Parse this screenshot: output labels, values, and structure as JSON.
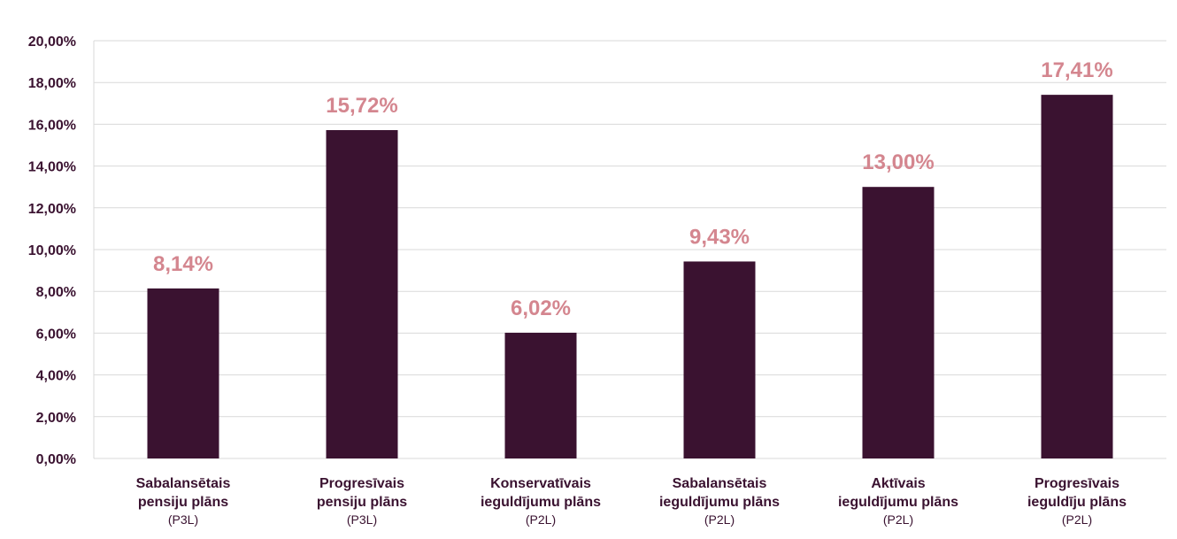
{
  "chart_data": {
    "type": "bar",
    "categories": [
      {
        "line1": "Sabalansētais",
        "line2": "pensiju plāns",
        "line3": "(P3L)"
      },
      {
        "line1": "Progresīvais",
        "line2": "pensiju plāns",
        "line3": "(P3L)"
      },
      {
        "line1": "Konservatīvais",
        "line2": "ieguldījumu plāns",
        "line3": "(P2L)"
      },
      {
        "line1": "Sabalansētais",
        "line2": "ieguldījumu plāns",
        "line3": "(P2L)"
      },
      {
        "line1": "Aktīvais",
        "line2": "ieguldījumu plāns",
        "line3": "(P2L)"
      },
      {
        "line1": "Progresīvais",
        "line2": "ieguldīju plāns",
        "line3": "(P2L)"
      }
    ],
    "values": [
      8.14,
      15.72,
      6.02,
      9.43,
      13.0,
      17.41
    ],
    "data_labels": [
      "8,14%",
      "15,72%",
      "6,02%",
      "9,43%",
      "13,00%",
      "17,41%"
    ],
    "ylim": [
      0,
      20
    ],
    "yticks": [
      {
        "value": 0,
        "label": "0,00%"
      },
      {
        "value": 2,
        "label": "2,00%"
      },
      {
        "value": 4,
        "label": "4,00%"
      },
      {
        "value": 6,
        "label": "6,00%"
      },
      {
        "value": 8,
        "label": "8,00%"
      },
      {
        "value": 10,
        "label": "10,00%"
      },
      {
        "value": 12,
        "label": "12,00%"
      },
      {
        "value": 14,
        "label": "14,00%"
      },
      {
        "value": 16,
        "label": "16,00%"
      },
      {
        "value": 18,
        "label": "18,00%"
      },
      {
        "value": 20,
        "label": "20,00%"
      }
    ],
    "grid": true,
    "legend": "none"
  },
  "colors": {
    "bar": "#3a1230",
    "data_label": "#d4868f",
    "grid": "#d9d9d9",
    "text": "#3a1230"
  }
}
